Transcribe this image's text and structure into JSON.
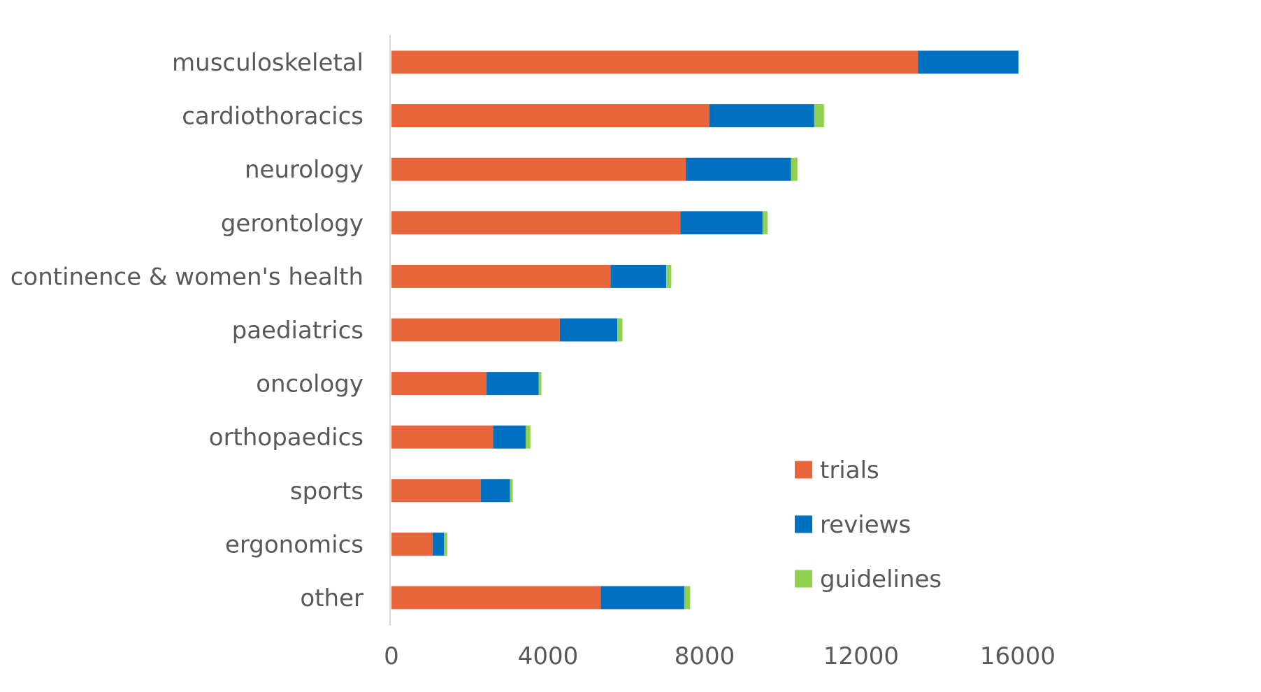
{
  "chart_data": {
    "type": "bar",
    "orientation": "horizontal",
    "stacked": true,
    "title": "",
    "xlabel": "",
    "ylabel": "",
    "xlim": [
      0,
      16000
    ],
    "x_ticks": [
      0,
      4000,
      8000,
      12000,
      16000
    ],
    "grid": false,
    "legend_position": "bottom-right",
    "categories": [
      "musculoskeletal",
      "cardiothoracics",
      "neurology",
      "gerontology",
      "continence & women's health",
      "paediatrics",
      "oncology",
      "orthopaedics",
      "sports",
      "ergonomics",
      "other"
    ],
    "series": [
      {
        "name": "trials",
        "color": "#E8643A",
        "values": [
          13450,
          8120,
          7520,
          7380,
          5600,
          4300,
          2430,
          2600,
          2280,
          1050,
          5350
        ]
      },
      {
        "name": "reviews",
        "color": "#0070C0",
        "values": [
          2570,
          2680,
          2690,
          2100,
          1420,
          1470,
          1330,
          830,
          750,
          290,
          2130
        ]
      },
      {
        "name": "guidelines",
        "color": "#92D050",
        "values": [
          0,
          250,
          160,
          130,
          130,
          130,
          70,
          120,
          70,
          90,
          150
        ]
      }
    ]
  }
}
